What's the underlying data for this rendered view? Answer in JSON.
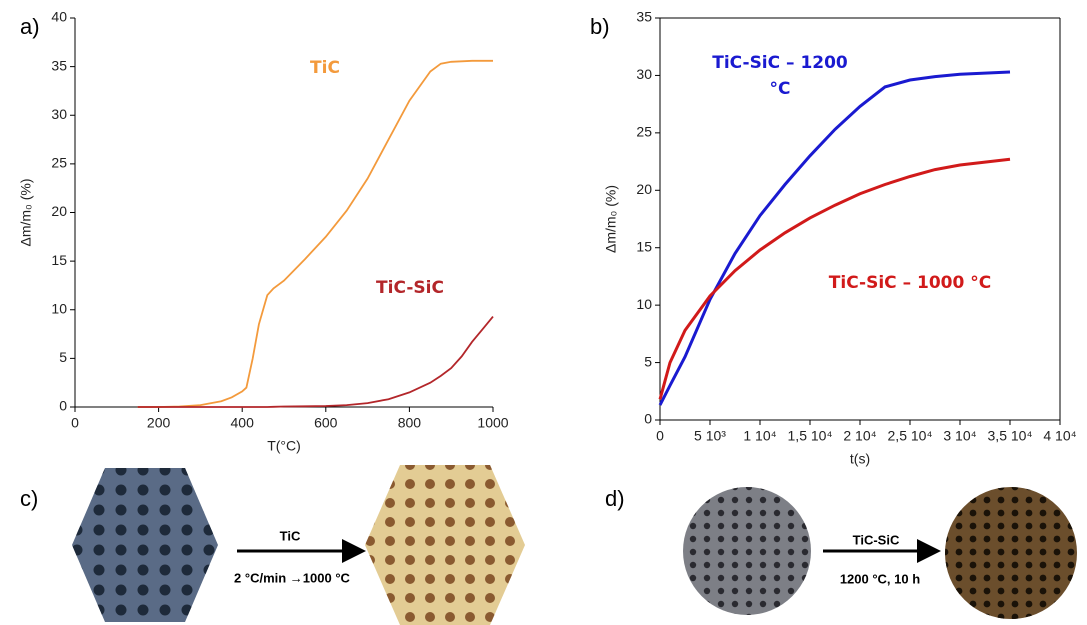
{
  "chart_data": [
    {
      "type": "line",
      "label": "a)",
      "xlabel": "T(°C)",
      "ylabel": "Δm/m₀ (%)",
      "x": [
        150,
        200,
        250,
        300,
        350,
        375,
        400,
        410,
        425,
        440,
        460,
        475,
        500,
        550,
        600,
        650,
        700,
        750,
        800,
        850,
        875,
        900,
        925,
        950,
        975,
        1000
      ],
      "series": [
        {
          "name": "TiC",
          "color": "#f39a3c",
          "values": [
            0,
            0,
            0.05,
            0.2,
            0.6,
            1.0,
            1.6,
            2.0,
            5,
            8.5,
            11.5,
            12.2,
            13,
            15.2,
            17.5,
            20.2,
            23.5,
            27.5,
            31.5,
            34.5,
            35.3,
            35.5,
            35.55,
            35.6,
            35.6,
            35.6
          ]
        },
        {
          "name": "TiC-SiC",
          "color": "#b3262a",
          "values": [
            0,
            0,
            0,
            0,
            0,
            0,
            0,
            0,
            0,
            0,
            0,
            0.02,
            0.05,
            0.07,
            0.1,
            0.2,
            0.4,
            0.8,
            1.5,
            2.5,
            3.2,
            4.0,
            5.2,
            6.7,
            8.0,
            9.3
          ]
        }
      ],
      "xlim": [
        0,
        1000
      ],
      "xticks": [
        0,
        200,
        400,
        600,
        800,
        1000
      ],
      "ylim": [
        0,
        40
      ],
      "yticks": [
        0,
        5,
        10,
        15,
        20,
        25,
        30,
        35,
        40
      ]
    },
    {
      "type": "line",
      "label": "b)",
      "xlabel": "t(s)",
      "ylabel": "Δm/m₀ (%)",
      "x": [
        0,
        1000,
        2500,
        5000,
        7500,
        10000,
        12500,
        15000,
        17500,
        20000,
        22500,
        25000,
        27500,
        30000,
        35000
      ],
      "series": [
        {
          "name": "TiC-SiC – 1200 °C",
          "color": "#1a1ad0",
          "values": [
            1.3,
            3.0,
            5.5,
            10.5,
            14.5,
            17.8,
            20.5,
            23,
            25.3,
            27.3,
            29,
            29.6,
            29.9,
            30.1,
            30.3
          ]
        },
        {
          "name": "TiC-SiC – 1000 °C",
          "color": "#d11a1a",
          "values": [
            1.8,
            5,
            7.8,
            10.8,
            13,
            14.8,
            16.3,
            17.6,
            18.7,
            19.7,
            20.5,
            21.2,
            21.8,
            22.2,
            22.7
          ]
        }
      ],
      "xlim": [
        0,
        40000
      ],
      "xticks": [
        0,
        {
          "value": 5000,
          "label": "5 10³"
        },
        {
          "value": 10000,
          "label": "1 10⁴"
        },
        {
          "value": 15000,
          "label": "1,5 10⁴"
        },
        {
          "value": 20000,
          "label": "2 10⁴"
        },
        {
          "value": 25000,
          "label": "2,5 10⁴"
        },
        {
          "value": 30000,
          "label": "3 10⁴"
        },
        {
          "value": 35000,
          "label": "3,5 10⁴"
        },
        {
          "value": 40000,
          "label": "4 10⁴"
        }
      ],
      "ylim": [
        0,
        35
      ],
      "yticks": [
        0,
        5,
        10,
        15,
        20,
        25,
        30,
        35
      ]
    }
  ],
  "photo_panels": [
    {
      "label": "c)",
      "above": "TiC",
      "below": "2 °C/min →1000 °C"
    },
    {
      "label": "d)",
      "above": "TiC-SiC",
      "below": "1200 °C, 10 h"
    }
  ]
}
